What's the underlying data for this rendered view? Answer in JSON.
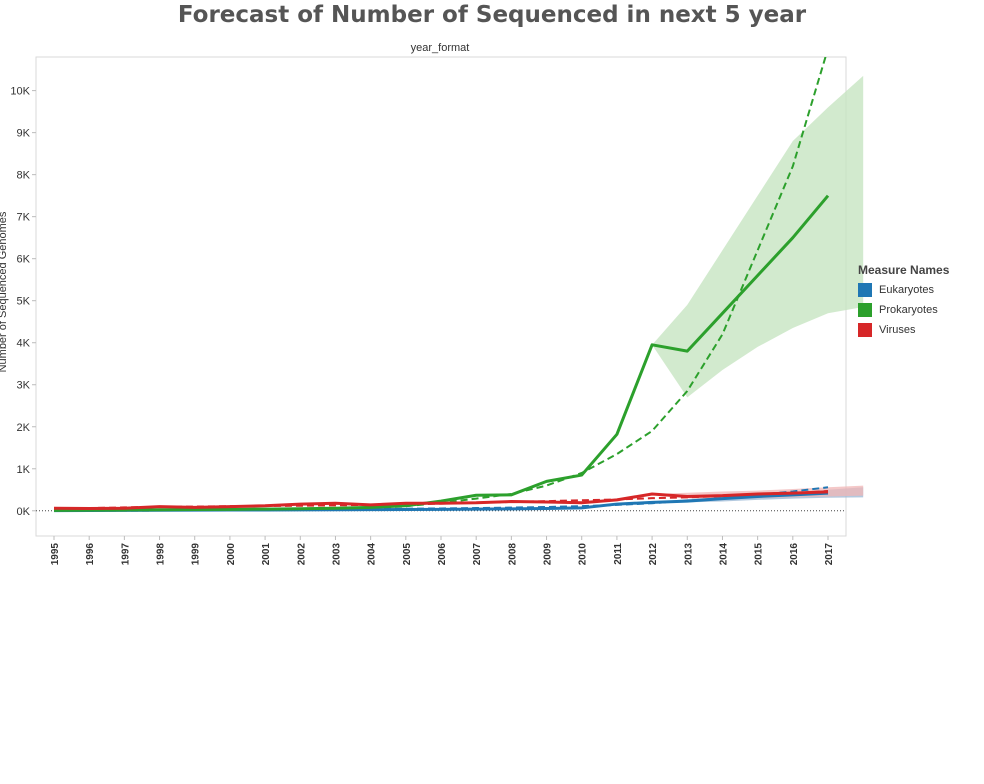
{
  "chart_data": {
    "type": "line",
    "title": "Forecast of Number of Sequenced in next 5 year",
    "subtitle": "year_format",
    "ylabel": "Number of Sequenced Genomes",
    "ylim": [
      -600,
      10800
    ],
    "y_ticks": [
      0,
      1000,
      2000,
      3000,
      4000,
      5000,
      6000,
      7000,
      8000,
      9000,
      10000
    ],
    "y_tick_labels": [
      "0K",
      "1K",
      "2K",
      "3K",
      "4K",
      "5K",
      "6K",
      "7K",
      "8K",
      "9K",
      "10K"
    ],
    "categories": [
      "1995",
      "1996",
      "1997",
      "1998",
      "1999",
      "2000",
      "2001",
      "2002",
      "2003",
      "2004",
      "2005",
      "2006",
      "2007",
      "2008",
      "2009",
      "2010",
      "2011",
      "2012",
      "2013",
      "2014",
      "2015",
      "2016",
      "2017"
    ],
    "legend_title": "Measure Names",
    "legend_position": "right",
    "grid": false,
    "series": [
      {
        "name": "Eukaryotes",
        "color": "#1f77b4",
        "band_color": "#9ab7d4",
        "values": [
          5,
          8,
          10,
          12,
          15,
          18,
          20,
          22,
          25,
          28,
          30,
          35,
          40,
          45,
          55,
          70,
          160,
          200,
          230,
          290,
          340,
          380,
          420
        ],
        "trend": [
          0,
          5,
          10,
          15,
          20,
          25,
          30,
          35,
          40,
          45,
          50,
          55,
          65,
          75,
          90,
          110,
          140,
          180,
          240,
          300,
          380,
          460,
          560
        ],
        "band_start": "2012",
        "band_lower": [
          200,
          200,
          220,
          260,
          290,
          310,
          320
        ],
        "band_upper": [
          200,
          280,
          330,
          390,
          440,
          500,
          560
        ]
      },
      {
        "name": "Prokaryotes",
        "color": "#2ca02c",
        "band_color": "#c3e3be",
        "values": [
          10,
          15,
          20,
          25,
          30,
          35,
          40,
          50,
          60,
          80,
          120,
          230,
          370,
          380,
          700,
          850,
          1820,
          3950,
          3800,
          4700,
          5600,
          6500,
          7500
        ],
        "trend": [
          0,
          2,
          4,
          6,
          10,
          15,
          20,
          30,
          45,
          70,
          110,
          190,
          290,
          400,
          600,
          900,
          1350,
          1900,
          2850,
          4200,
          6200,
          8200,
          11000
        ],
        "band_start": "2012",
        "band_lower": [
          3950,
          2700,
          3350,
          3900,
          4350,
          4700,
          4850
        ],
        "band_upper": [
          3950,
          4900,
          6200,
          7500,
          8800,
          9600,
          10350
        ]
      },
      {
        "name": "Viruses",
        "color": "#d62728",
        "band_color": "#f0b6b6",
        "values": [
          60,
          55,
          60,
          100,
          80,
          100,
          120,
          160,
          180,
          140,
          180,
          180,
          190,
          220,
          210,
          190,
          260,
          400,
          340,
          360,
          400,
          420,
          450
        ],
        "trend": [
          50,
          65,
          80,
          95,
          100,
          110,
          115,
          120,
          130,
          140,
          155,
          170,
          190,
          210,
          230,
          250,
          270,
          300,
          320,
          350,
          380,
          420,
          470
        ],
        "band_start": "2012",
        "band_lower": [
          400,
          300,
          280,
          300,
          320,
          340,
          360
        ],
        "band_upper": [
          400,
          430,
          460,
          480,
          520,
          560,
          600
        ]
      }
    ]
  }
}
